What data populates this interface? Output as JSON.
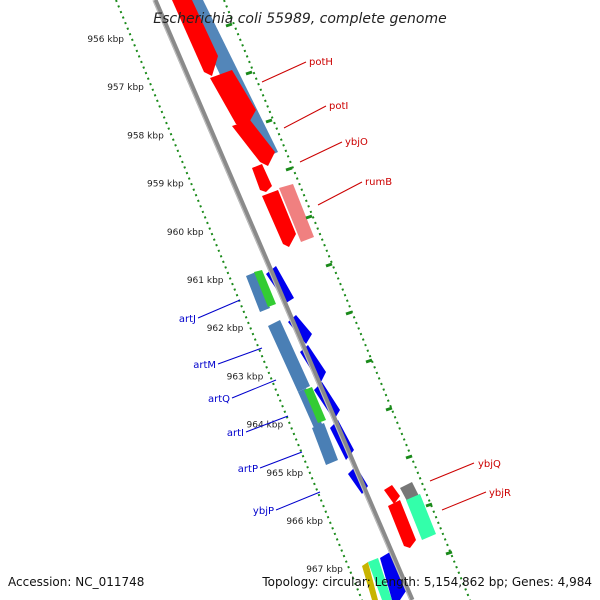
{
  "title": "Escherichia coli 55989, complete genome",
  "footer": {
    "accession": "Accession: NC_011748",
    "summary": "Topology: circular; Length: 5,154,862 bp; Genes: 4,984"
  },
  "kbp_ticks": [
    "956 kbp",
    "957 kbp",
    "958 kbp",
    "959 kbp",
    "960 kbp",
    "961 kbp",
    "962 kbp",
    "963 kbp",
    "964 kbp",
    "965 kbp",
    "966 kbp",
    "967 kbp"
  ],
  "gene_labels_right": [
    {
      "name": "potH",
      "color": "#cc0000"
    },
    {
      "name": "potI",
      "color": "#cc0000"
    },
    {
      "name": "ybjO",
      "color": "#cc0000"
    },
    {
      "name": "rumB",
      "color": "#cc0000"
    },
    {
      "name": "ybjQ",
      "color": "#cc0000"
    },
    {
      "name": "ybjR",
      "color": "#cc0000"
    }
  ],
  "gene_labels_left": [
    {
      "name": "artJ",
      "color": "#0000cc"
    },
    {
      "name": "artM",
      "color": "#0000cc"
    },
    {
      "name": "artQ",
      "color": "#0000cc"
    },
    {
      "name": "artI",
      "color": "#0000cc"
    },
    {
      "name": "artP",
      "color": "#0000cc"
    },
    {
      "name": "ybjP",
      "color": "#0000cc"
    }
  ],
  "colors": {
    "backbone": "#808080",
    "dotted_track": "#1a8a1a",
    "forward_gene": "#ff0000",
    "reverse_gene": "#0000ee",
    "steel_blue": "#4a7fb5",
    "pink": "#f08080",
    "green": "#33cc33",
    "aqua": "#33ffaa",
    "grey": "#777777"
  }
}
